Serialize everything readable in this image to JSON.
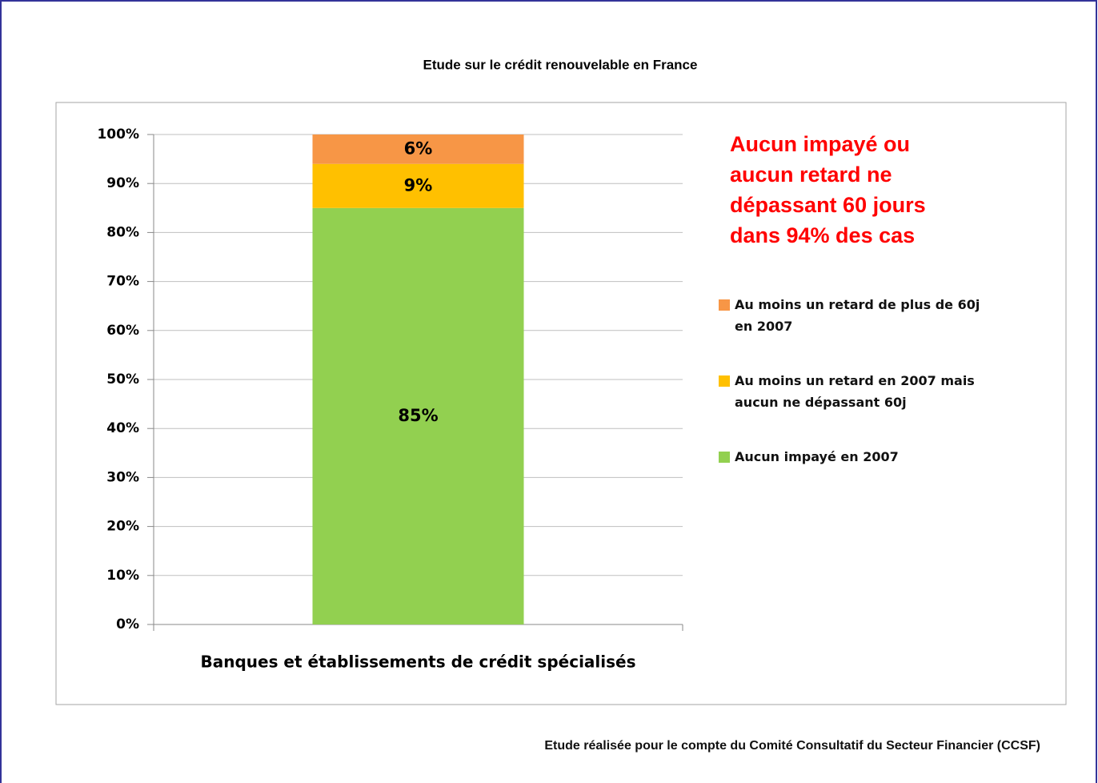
{
  "chart_data": {
    "type": "stacked_bar",
    "title": "Etude sur le crédit renouvelable en France",
    "categories": [
      "Banques et établissements de crédit spécialisés"
    ],
    "series": [
      {
        "name": "Aucun impayé en 2007",
        "color": "#92d050",
        "values": [
          85
        ],
        "value_labels": [
          "85%"
        ]
      },
      {
        "name": "Au moins un retard en 2007 mais aucun ne dépassant 60j",
        "color": "#ffc000",
        "values": [
          9
        ],
        "value_labels": [
          "9%"
        ]
      },
      {
        "name": "Au moins un retard de plus de 60j en 2007",
        "color": "#f79646",
        "values": [
          6
        ],
        "value_labels": [
          "6%"
        ]
      }
    ],
    "ylim": [
      0,
      100
    ],
    "yticks": [
      {
        "value": 0,
        "label": "0%"
      },
      {
        "value": 10,
        "label": "10%"
      },
      {
        "value": 20,
        "label": "20%"
      },
      {
        "value": 30,
        "label": "30%"
      },
      {
        "value": 40,
        "label": "40%"
      },
      {
        "value": 50,
        "label": "50%"
      },
      {
        "value": 60,
        "label": "60%"
      },
      {
        "value": 70,
        "label": "70%"
      },
      {
        "value": 80,
        "label": "80%"
      },
      {
        "value": 90,
        "label": "90%"
      },
      {
        "value": 100,
        "label": "100%"
      }
    ],
    "grid": true,
    "legend": "right",
    "annotation": [
      "Aucun impayé ou",
      "aucun retard ne",
      "dépassant 60 jours",
      "dans 94% des cas"
    ],
    "footer": "Etude réalisée pour le compte du Comité Consultatif du Secteur Financier (CCSF)"
  }
}
